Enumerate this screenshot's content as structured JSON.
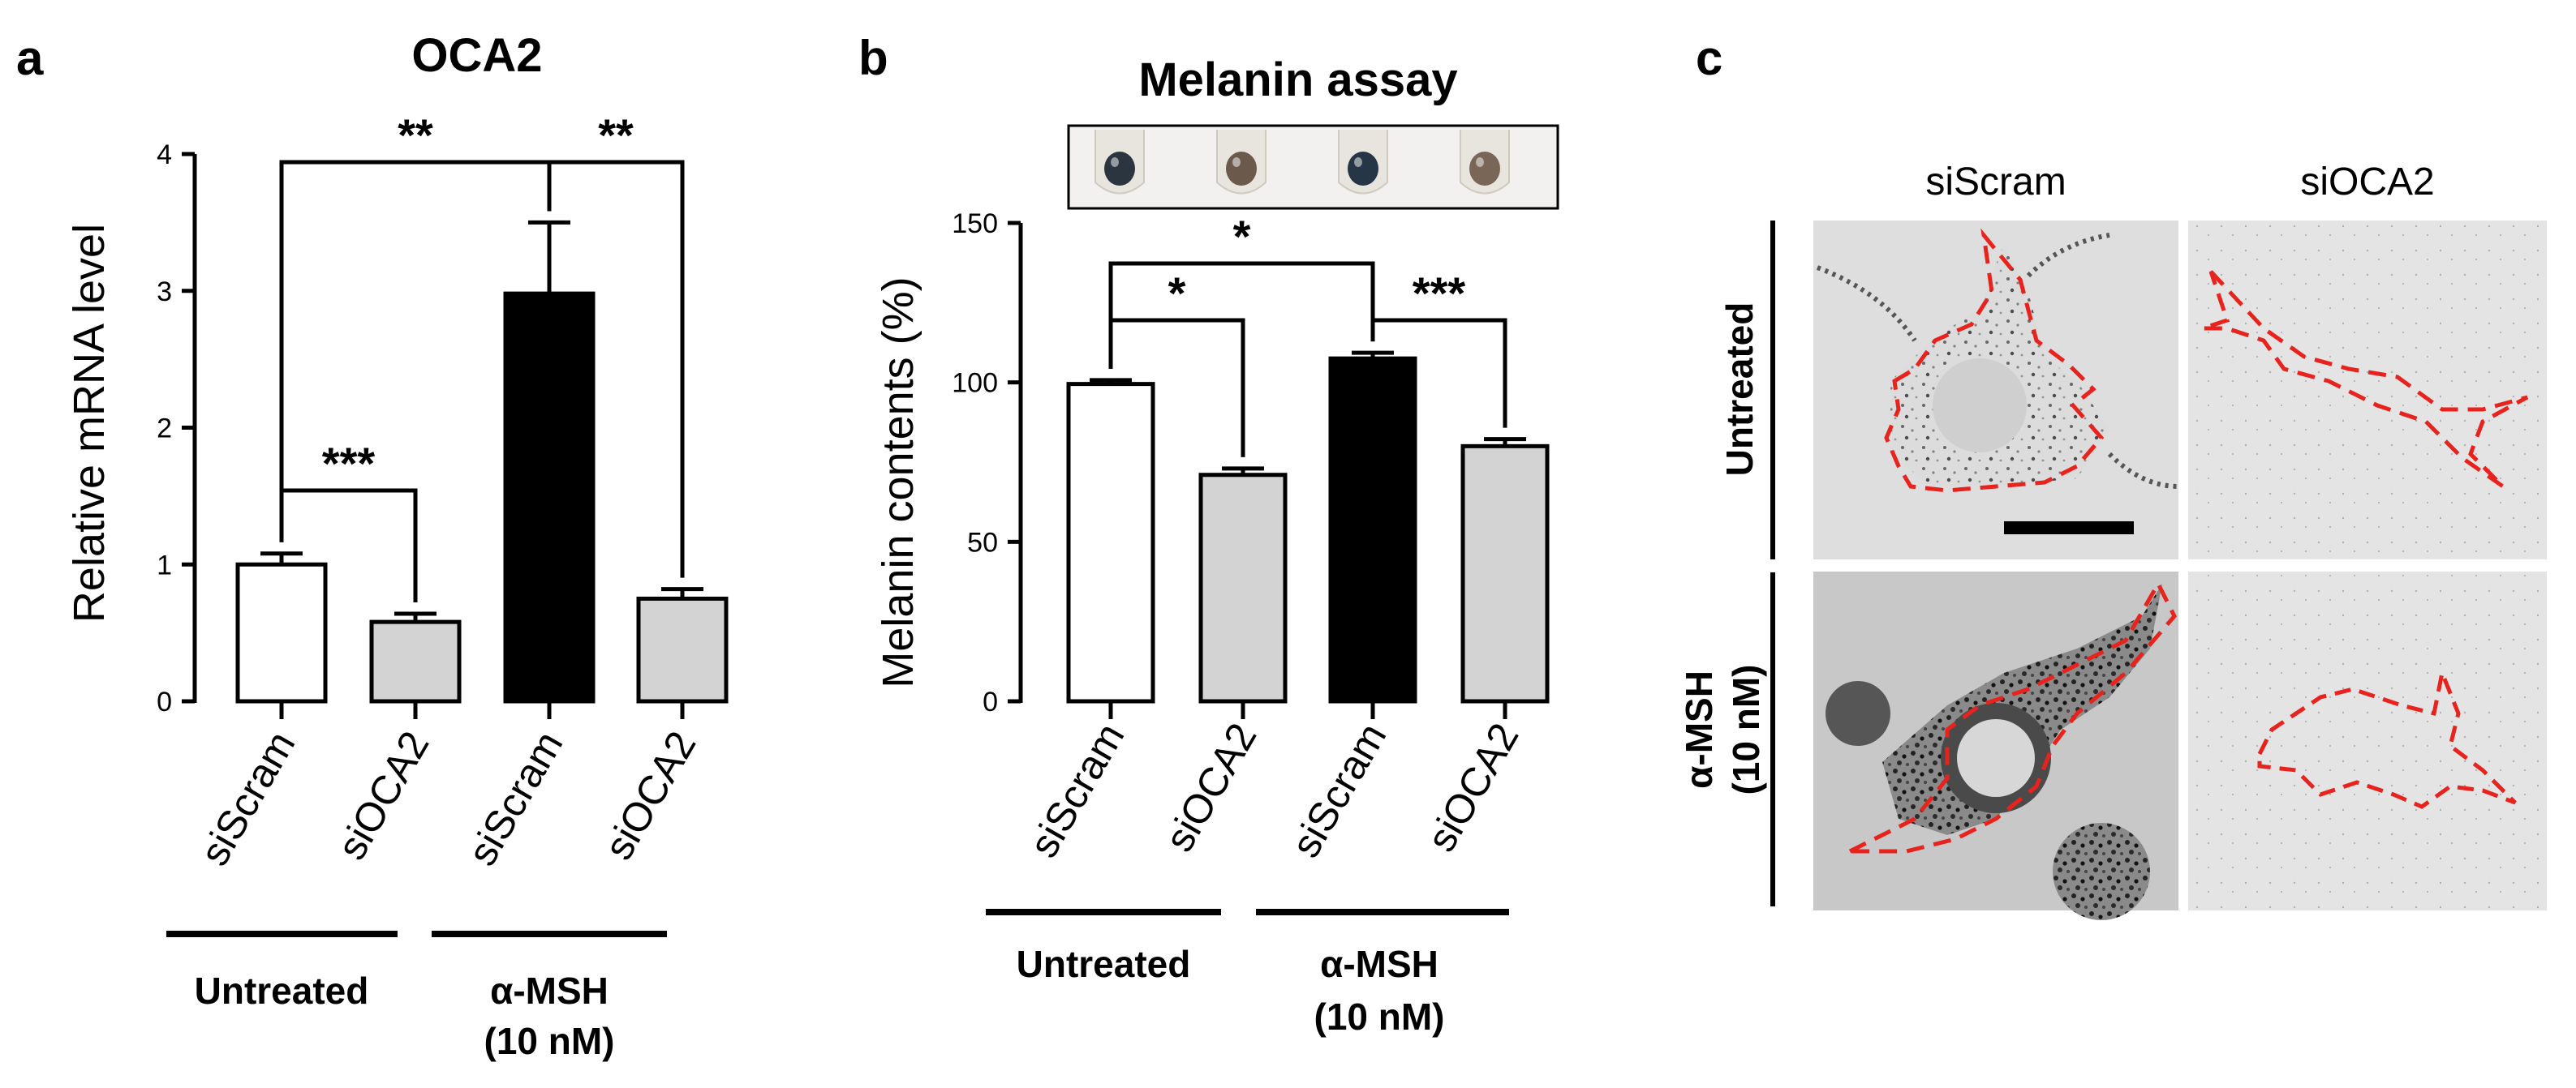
{
  "panel_letters": {
    "a": "a",
    "b": "b",
    "c": "c"
  },
  "chart_data": [
    {
      "type": "bar",
      "title": "OCA2",
      "ylabel": "Relative mRNA level",
      "xlabel": "",
      "ylim": [
        0,
        4
      ],
      "yticks": [
        "0",
        "1",
        "2",
        "3",
        "4"
      ],
      "yticks_values": [
        0,
        1,
        2,
        3,
        4
      ],
      "categories": [
        "siScram",
        "siOCA2",
        "siScram",
        "siOCA2"
      ],
      "values": [
        1.0,
        0.58,
        2.98,
        0.75
      ],
      "errors": [
        0.08,
        0.06,
        0.52,
        0.07
      ],
      "bar_colors": [
        "#ffffff",
        "#d3d3d3",
        "#000000",
        "#d3d3d3"
      ],
      "groups": [
        {
          "label_lines": [
            "Untreated"
          ]
        },
        {
          "label_lines": [
            "α-MSH",
            "(10 nM)"
          ]
        }
      ],
      "significance": [
        {
          "from": 0,
          "to": 1,
          "label": "***"
        },
        {
          "from": 0,
          "to": 2,
          "label": "**"
        },
        {
          "from": 2,
          "to": 3,
          "label": "**"
        }
      ]
    },
    {
      "type": "bar",
      "title": "Melanin assay",
      "ylabel": "Melanin contents (%)",
      "xlabel": "",
      "ylim": [
        0,
        150
      ],
      "yticks": [
        "0",
        "50",
        "100",
        "150"
      ],
      "yticks_values": [
        0,
        50,
        100,
        150
      ],
      "categories": [
        "siScram",
        "siOCA2",
        "siScram",
        "siOCA2"
      ],
      "values": [
        99.5,
        71,
        107.5,
        80
      ],
      "errors": [
        1.2,
        2.0,
        1.8,
        2.2
      ],
      "bar_colors": [
        "#ffffff",
        "#d3d3d3",
        "#000000",
        "#d3d3d3"
      ],
      "pellet_colors": [
        "#2b3540",
        "#6b5a4c",
        "#263646",
        "#7a6656"
      ],
      "groups": [
        {
          "label_lines": [
            "Untreated"
          ]
        },
        {
          "label_lines": [
            "α-MSH",
            "(10 nM)"
          ]
        }
      ],
      "significance": [
        {
          "from": 0,
          "to": 1,
          "label": "*"
        },
        {
          "from": 0,
          "to": 2,
          "label": "*"
        },
        {
          "from": 2,
          "to": 3,
          "label": "***"
        }
      ]
    }
  ],
  "images_panel": {
    "columns": [
      "siScram",
      "siOCA2"
    ],
    "rows": [
      {
        "label_lines": [
          "Untreated"
        ]
      },
      {
        "label_lines": [
          "α-MSH",
          "(10 nM)"
        ]
      }
    ]
  }
}
